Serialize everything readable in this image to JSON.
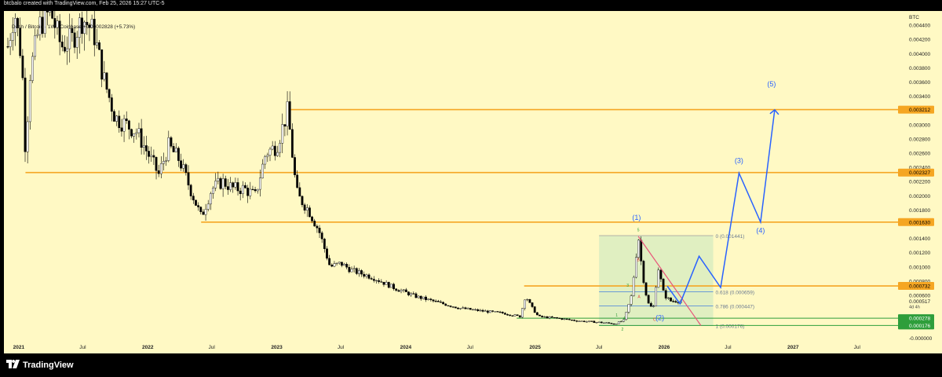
{
  "header": {
    "credit": "btcbalo created with TradingView.com, Feb 25, 2026 15:27 UTC-5"
  },
  "legend": {
    "text": "Dash / Bitcoin · 1W · Coinbase  +0.00002828 (+5.73%)"
  },
  "footer": {
    "brand": "TradingView",
    "logo_icon": "tradingview-logo-icon"
  },
  "colors": {
    "background": "#fff9c4",
    "up": "#ffffff",
    "down": "#000000",
    "level": "#f5a623",
    "wave": "#2962ff",
    "support": "#2e9e3b",
    "box": "#d8ecc0",
    "trend": "#e8557a"
  },
  "chart_data": {
    "type": "candlestick",
    "currency": "BTC",
    "ylim": [
      -3e-05,
      0.0046
    ],
    "xrange": [
      "2020-11-20",
      "2027-10-25"
    ],
    "y_ticks": [
      "0.004400",
      "0.004200",
      "0.004000",
      "0.003800",
      "0.003600",
      "0.003400",
      "0.003000",
      "0.002800",
      "0.002600",
      "0.002400",
      "0.002200",
      "0.002000",
      "0.001800",
      "0.001400",
      "0.001200",
      "0.001000",
      "0.000800",
      "0.000600",
      "-0.000000"
    ],
    "x_ticks": [
      {
        "label": "2021",
        "date": "2021-01-01"
      },
      {
        "label": "Jul",
        "date": "2021-07-01"
      },
      {
        "label": "2022",
        "date": "2022-01-01"
      },
      {
        "label": "Jul",
        "date": "2022-07-01"
      },
      {
        "label": "2023",
        "date": "2023-01-01"
      },
      {
        "label": "Jul",
        "date": "2023-07-01"
      },
      {
        "label": "2024",
        "date": "2024-01-01"
      },
      {
        "label": "Jul",
        "date": "2024-07-01"
      },
      {
        "label": "2025",
        "date": "2025-01-01"
      },
      {
        "label": "Jul",
        "date": "2025-07-01"
      },
      {
        "label": "2026",
        "date": "2026-01-01"
      },
      {
        "label": "Jul",
        "date": "2026-07-01"
      },
      {
        "label": "2027",
        "date": "2027-01-01"
      },
      {
        "label": "Jul",
        "date": "2027-07-01"
      }
    ],
    "price_series": [
      [
        "2020-12-01",
        0.0041
      ],
      [
        "2020-12-20",
        0.0046
      ],
      [
        "2021-01-10",
        0.0039
      ],
      [
        "2021-01-20",
        0.0026
      ],
      [
        "2021-02-01",
        0.0037
      ],
      [
        "2021-03-01",
        0.0044
      ],
      [
        "2021-04-01",
        0.0046
      ],
      [
        "2021-05-01",
        0.0041
      ],
      [
        "2021-06-01",
        0.0042
      ],
      [
        "2021-07-01",
        0.0045
      ],
      [
        "2021-08-01",
        0.0043
      ],
      [
        "2021-09-01",
        0.0036
      ],
      [
        "2021-10-01",
        0.0031
      ],
      [
        "2021-11-01",
        0.003
      ],
      [
        "2021-12-01",
        0.0029
      ],
      [
        "2022-01-01",
        0.0026
      ],
      [
        "2022-02-01",
        0.0023
      ],
      [
        "2022-03-01",
        0.0027
      ],
      [
        "2022-04-01",
        0.0025
      ],
      [
        "2022-05-01",
        0.0021
      ],
      [
        "2022-06-01",
        0.0017
      ],
      [
        "2022-07-01",
        0.0021
      ],
      [
        "2022-08-01",
        0.0022
      ],
      [
        "2022-09-01",
        0.0021
      ],
      [
        "2022-10-01",
        0.0021
      ],
      [
        "2022-11-01",
        0.002
      ],
      [
        "2022-12-01",
        0.0026
      ],
      [
        "2023-01-01",
        0.0027
      ],
      [
        "2023-02-01",
        0.0032
      ],
      [
        "2023-02-20",
        0.0023
      ],
      [
        "2023-03-01",
        0.002
      ],
      [
        "2023-04-01",
        0.0018
      ],
      [
        "2023-05-01",
        0.0015
      ],
      [
        "2023-06-01",
        0.001
      ],
      [
        "2023-07-01",
        0.00105
      ],
      [
        "2023-08-01",
        0.00095
      ],
      [
        "2023-10-01",
        0.00085
      ],
      [
        "2023-12-01",
        0.0007
      ],
      [
        "2024-02-01",
        0.00058
      ],
      [
        "2024-04-01",
        0.0005
      ],
      [
        "2024-06-01",
        0.00042
      ],
      [
        "2024-08-01",
        0.00038
      ],
      [
        "2024-10-01",
        0.00035
      ],
      [
        "2024-11-20",
        0.0003
      ],
      [
        "2024-12-05",
        0.0006
      ],
      [
        "2024-12-20",
        0.00045
      ],
      [
        "2025-01-10",
        0.0003
      ],
      [
        "2025-03-01",
        0.00028
      ],
      [
        "2025-05-01",
        0.00024
      ],
      [
        "2025-07-01",
        0.00022
      ],
      [
        "2025-08-15",
        0.0002
      ],
      [
        "2025-09-10",
        0.00025
      ],
      [
        "2025-10-01",
        0.0006
      ],
      [
        "2025-10-20",
        0.00144
      ],
      [
        "2025-11-01",
        0.0009
      ],
      [
        "2025-11-15",
        0.0005
      ],
      [
        "2025-12-01",
        0.0004
      ],
      [
        "2025-12-15",
        0.001
      ],
      [
        "2026-01-01",
        0.0006
      ],
      [
        "2026-01-20",
        0.00052
      ],
      [
        "2026-02-20",
        0.000517
      ]
    ],
    "horizontal_levels": [
      {
        "price": 0.003212,
        "label": "0.003212",
        "start": "2023-02-10"
      },
      {
        "price": 0.002327,
        "label": "0.002327",
        "start": "2021-01-20"
      },
      {
        "price": 0.00163,
        "label": "0.001630",
        "start": "2022-06-01"
      },
      {
        "price": 0.000732,
        "label": "0.000732",
        "start": "2024-12-01"
      }
    ],
    "support_levels": [
      {
        "price": 0.000278,
        "label": "0.000278",
        "start": "2024-11-10"
      },
      {
        "price": 0.000176,
        "label": "0.000176",
        "start": "2025-07-01"
      }
    ],
    "current_price": {
      "label": "0.000517",
      "countdown": "4d 4h",
      "price": 0.000517
    },
    "fib_box": {
      "start": "2025-07-01",
      "end": "2026-05-20",
      "top": 0.00144,
      "bottom": 0.000176,
      "levels": [
        {
          "price": 0.00144,
          "label": "0 (0.001441)"
        },
        {
          "price": 0.00065,
          "label": "0.618 (0.000659)"
        },
        {
          "price": 0.00045,
          "label": "0.786 (0.000447)"
        },
        {
          "price": 0.000176,
          "label": "1 (0.000176)"
        }
      ]
    },
    "wave_labels": [
      {
        "text": "(1)",
        "date": "2025-10-15",
        "price": 0.00166
      },
      {
        "text": "(2)",
        "date": "2025-12-20",
        "price": 0.00025
      },
      {
        "text": "(3)",
        "date": "2026-08-01",
        "price": 0.00246
      },
      {
        "text": "(4)",
        "date": "2026-10-01",
        "price": 0.00148
      },
      {
        "text": "(5)",
        "date": "2026-11-01",
        "price": 0.00354
      }
    ],
    "projection": [
      [
        "2026-01-10",
        0.00073
      ],
      [
        "2026-02-15",
        0.00048
      ],
      [
        "2026-04-10",
        0.00115
      ],
      [
        "2026-06-10",
        0.00071
      ],
      [
        "2026-08-01",
        0.00232
      ],
      [
        "2026-10-01",
        0.00163
      ],
      [
        "2026-11-10",
        0.00321
      ]
    ],
    "trend_line": [
      [
        "2025-10-20",
        0.00143
      ],
      [
        "2026-04-15",
        0.000176
      ]
    ],
    "small_labels": [
      {
        "text": "5",
        "date": "2025-10-20",
        "price": 0.0015,
        "color": "green"
      },
      {
        "text": "B",
        "date": "2025-10-20",
        "price": 0.00108,
        "color": "red"
      },
      {
        "text": "A",
        "date": "2025-10-22",
        "price": 0.00056,
        "color": "red"
      },
      {
        "text": "C",
        "date": "2025-12-05",
        "price": 0.00024,
        "color": "red"
      },
      {
        "text": "3",
        "date": "2025-09-20",
        "price": 0.00072,
        "color": "green"
      },
      {
        "text": "1",
        "date": "2025-08-20",
        "price": 0.0003,
        "color": "green"
      },
      {
        "text": "4",
        "date": "2025-09-10",
        "price": 0.00026,
        "color": "green"
      },
      {
        "text": "2",
        "date": "2025-09-05",
        "price": 0.0001,
        "color": "green"
      }
    ]
  }
}
